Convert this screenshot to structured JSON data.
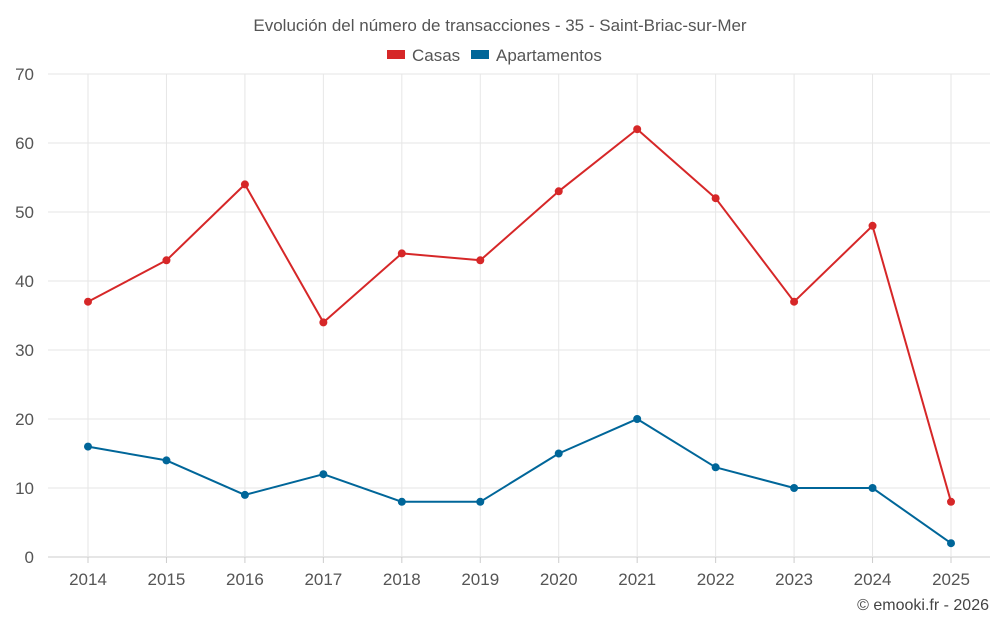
{
  "chart_data": {
    "type": "line",
    "title": "Evolución del número de transacciones - 35 - Saint-Briac-sur-Mer",
    "xlabel": "",
    "ylabel": "",
    "categories": [
      "2014",
      "2015",
      "2016",
      "2017",
      "2018",
      "2019",
      "2020",
      "2021",
      "2022",
      "2023",
      "2024",
      "2025"
    ],
    "ylim": [
      0,
      70
    ],
    "yticks": [
      0,
      10,
      20,
      30,
      40,
      50,
      60,
      70
    ],
    "grid": true,
    "legend_position": "top-center",
    "series": [
      {
        "name": "Casas",
        "color": "#d62728",
        "values": [
          37,
          43,
          54,
          34,
          44,
          43,
          53,
          62,
          52,
          37,
          48,
          8
        ]
      },
      {
        "name": "Apartamentos",
        "color": "#006699",
        "values": [
          16,
          14,
          9,
          12,
          8,
          8,
          15,
          20,
          13,
          10,
          10,
          2
        ]
      }
    ],
    "credit": "© emooki.fr - 2026"
  }
}
